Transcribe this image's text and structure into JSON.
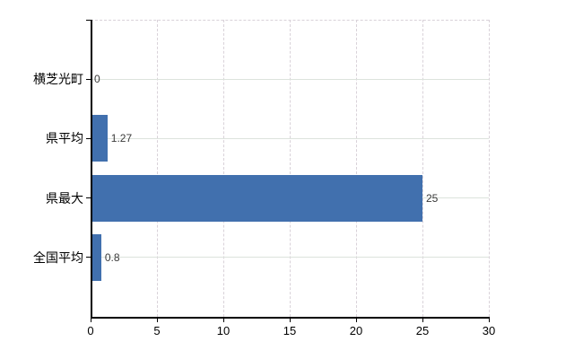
{
  "chart_data": {
    "type": "bar",
    "orientation": "horizontal",
    "title": "",
    "xlabel": "",
    "ylabel": "",
    "categories": [
      "横芝光町",
      "県平均",
      "県最大",
      "全国平均"
    ],
    "values": [
      0,
      1.27,
      25,
      0.8
    ],
    "value_labels": [
      "0",
      "1.27",
      "25",
      "0.8"
    ],
    "xlim": [
      0,
      30
    ],
    "xticks": [
      0,
      5,
      10,
      15,
      20,
      25,
      30
    ],
    "xtick_labels": [
      "0",
      "5",
      "10",
      "15",
      "20",
      "25",
      "30"
    ],
    "grid": true,
    "legend": false,
    "colors": {
      "bar": "#4170ae",
      "axis": "#000000",
      "hgrid": "#dce3dc",
      "vgrid": "#d9d2d9",
      "value_text": "#3a3a3a",
      "tick_text": "#000000",
      "background": "#ffffff"
    }
  }
}
